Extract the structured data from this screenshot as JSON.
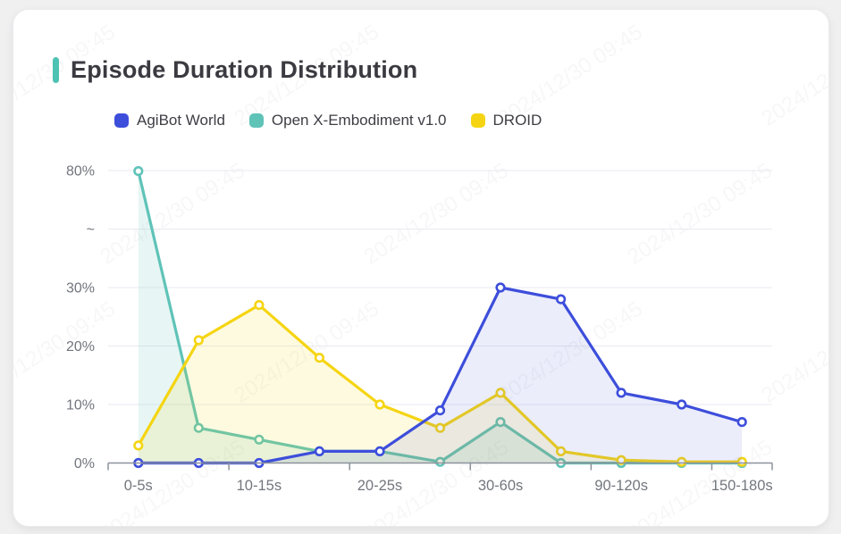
{
  "header": {
    "title": "Episode Duration Distribution",
    "accent_color": "#4EC3B4"
  },
  "legend": [
    {
      "label": "AgiBot World",
      "color": "#3D4EDB"
    },
    {
      "label": "Open X-Embodiment v1.0",
      "color": "#5FC3B8"
    },
    {
      "label": "DROID",
      "color": "#F5D513"
    }
  ],
  "watermark": {
    "text": "2024/12/30 09:45"
  },
  "chart_data": {
    "type": "line",
    "title": "Episode Duration Distribution",
    "categories": [
      "0-5s",
      "",
      "10-15s",
      "",
      "20-25s",
      "",
      "30-60s",
      "",
      "90-120s",
      "",
      "150-180s"
    ],
    "x_axis": {
      "labels_shown": [
        "0-5s",
        "10-15s",
        "20-25s",
        "30-60s",
        "90-120s",
        "150-180s"
      ],
      "label_interval": 2
    },
    "y_axis": {
      "tick_labels": [
        "0%",
        "10%",
        "20%",
        "30%",
        "~",
        "80%"
      ],
      "unit": "%",
      "broken_axis": "axis break between 30% and 80%",
      "ylim": [
        0,
        80
      ]
    },
    "grid": true,
    "legend_position": "top",
    "series": [
      {
        "name": "AgiBot World",
        "color": "#3D4EDB",
        "area_fill": "rgba(61,78,219,0.10)",
        "values": [
          0,
          0,
          0,
          2,
          2,
          9,
          30,
          28,
          12,
          10,
          7
        ]
      },
      {
        "name": "Open X-Embodiment v1.0",
        "color": "#5FC3B8",
        "area_fill": "rgba(95,195,184,0.15)",
        "values": [
          79.7,
          6,
          4,
          2,
          2,
          0.2,
          7,
          0,
          0,
          0,
          0
        ]
      },
      {
        "name": "DROID",
        "color": "#F5D513",
        "area_fill": "rgba(245,213,19,0.13)",
        "values": [
          3,
          21,
          27,
          18,
          10,
          6,
          12,
          2,
          0.5,
          0.2,
          0.2
        ]
      }
    ]
  }
}
